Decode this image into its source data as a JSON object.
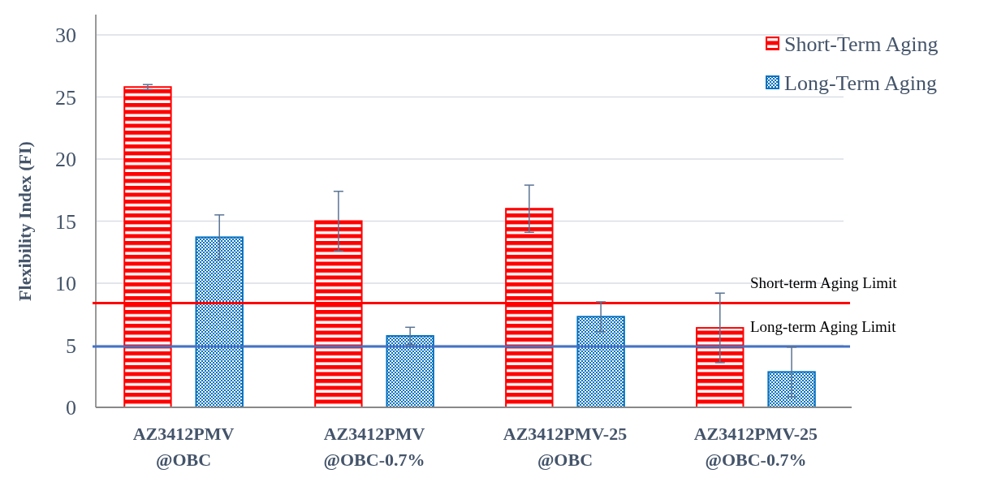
{
  "chart_data": {
    "type": "bar",
    "ylabel": "Flexibility Index (FI)",
    "categories": [
      "AZ3412PMV\n@OBC",
      "AZ3412PMV\n@OBC-0.7%",
      "AZ3412PMV-25\n@OBC",
      "AZ3412PMV-25\n@OBC-0.7%"
    ],
    "series": [
      {
        "name": "Short-Term Aging",
        "color": "#ff0000",
        "values": [
          25.8,
          15.0,
          16.0,
          6.4
        ],
        "errors": [
          0.2,
          2.4,
          1.9,
          2.8
        ]
      },
      {
        "name": "Long-Term Aging",
        "color": "#0070c0",
        "values": [
          13.7,
          5.75,
          7.3,
          2.85
        ],
        "errors": [
          1.8,
          0.7,
          1.2,
          2.0
        ]
      }
    ],
    "ylim": [
      0,
      30
    ],
    "yticks": [
      0,
      5,
      10,
      15,
      20,
      25,
      30
    ],
    "grid": "y",
    "legend": "top right",
    "ref_lines": [
      {
        "axis": "y",
        "value": 8.4,
        "label": "Short-term Aging Limit",
        "color": "#ff0000"
      },
      {
        "axis": "y",
        "value": 4.9,
        "label": "Long-term Aging Limit",
        "color": "#4472c4"
      }
    ]
  }
}
